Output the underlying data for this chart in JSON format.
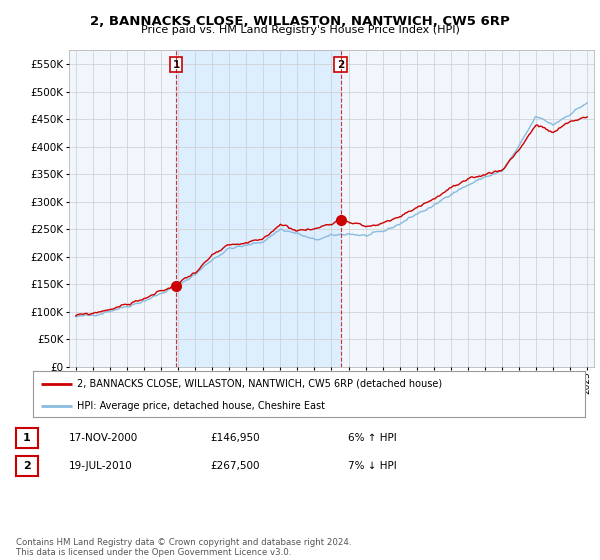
{
  "title": "2, BANNACKS CLOSE, WILLASTON, NANTWICH, CW5 6RP",
  "subtitle": "Price paid vs. HM Land Registry's House Price Index (HPI)",
  "legend_line1": "2, BANNACKS CLOSE, WILLASTON, NANTWICH, CW5 6RP (detached house)",
  "legend_line2": "HPI: Average price, detached house, Cheshire East",
  "transaction1_date": "17-NOV-2000",
  "transaction1_price": "£146,950",
  "transaction1_hpi": "6% ↑ HPI",
  "transaction2_date": "19-JUL-2010",
  "transaction2_price": "£267,500",
  "transaction2_hpi": "7% ↓ HPI",
  "footer": "Contains HM Land Registry data © Crown copyright and database right 2024.\nThis data is licensed under the Open Government Licence v3.0.",
  "property_color": "#cc0000",
  "hpi_color": "#88bbdd",
  "vline_color": "#cc0000",
  "shade_color": "#ddeeff",
  "grid_color": "#cccccc",
  "background_color": "#ffffff",
  "plot_bg_color": "#f0f6fc",
  "ylim": [
    0,
    575000
  ],
  "yticks": [
    0,
    50000,
    100000,
    150000,
    200000,
    250000,
    300000,
    350000,
    400000,
    450000,
    500000,
    550000
  ],
  "transaction1_x": 2000.88,
  "transaction2_x": 2010.54,
  "transaction1_y": 146950,
  "transaction2_y": 267500,
  "xmin": 1994.6,
  "xmax": 2025.4
}
